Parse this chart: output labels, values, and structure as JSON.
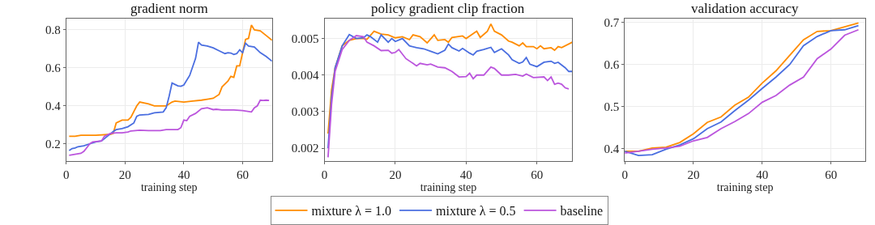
{
  "chart_data": [
    {
      "type": "line",
      "title": "gradient norm",
      "xlabel": "training step",
      "xlim": [
        0,
        70
      ],
      "xticks": [
        0,
        20,
        40,
        60
      ],
      "ylim": [
        0.11,
        0.86
      ],
      "yticks": [
        0.2,
        0.4,
        0.6,
        0.8
      ],
      "grid": true,
      "legend": "bottom",
      "marker": "none",
      "line_style": "solid",
      "series": [
        {
          "name": "mixture λ = 1.0",
          "color": "#ff8c00",
          "x": [
            1,
            3,
            5,
            10,
            15,
            16,
            17,
            19,
            21,
            22,
            24,
            25,
            28,
            30,
            32,
            34,
            36,
            37,
            40,
            43,
            46,
            48,
            50,
            52,
            53,
            55,
            56,
            57,
            58,
            59,
            60,
            61,
            62,
            63,
            64,
            66,
            68,
            70
          ],
          "values": [
            0.24,
            0.24,
            0.245,
            0.245,
            0.25,
            0.255,
            0.31,
            0.325,
            0.325,
            0.34,
            0.4,
            0.42,
            0.41,
            0.4,
            0.4,
            0.4,
            0.42,
            0.425,
            0.42,
            0.425,
            0.43,
            0.435,
            0.44,
            0.46,
            0.5,
            0.53,
            0.555,
            0.55,
            0.61,
            0.61,
            0.68,
            0.75,
            0.755,
            0.825,
            0.8,
            0.795,
            0.77,
            0.745
          ]
        },
        {
          "name": "mixture λ = 0.5",
          "color": "#4a6ee0",
          "x": [
            1,
            2,
            3,
            4,
            6,
            8,
            10,
            12,
            14,
            16,
            17,
            19,
            21,
            23,
            24,
            25,
            28,
            30,
            33,
            34,
            35,
            36,
            38,
            39,
            40,
            42,
            44,
            45,
            46,
            48,
            50,
            52,
            54,
            55,
            56,
            57,
            58,
            59,
            60,
            61,
            62,
            64,
            66,
            68,
            70
          ],
          "values": [
            0.165,
            0.175,
            0.178,
            0.185,
            0.19,
            0.2,
            0.21,
            0.215,
            0.24,
            0.265,
            0.275,
            0.28,
            0.29,
            0.31,
            0.345,
            0.352,
            0.355,
            0.363,
            0.368,
            0.39,
            0.45,
            0.52,
            0.505,
            0.503,
            0.51,
            0.56,
            0.65,
            0.735,
            0.72,
            0.715,
            0.705,
            0.69,
            0.675,
            0.68,
            0.678,
            0.67,
            0.675,
            0.695,
            0.68,
            0.73,
            0.715,
            0.71,
            0.68,
            0.66,
            0.635
          ]
        },
        {
          "name": "baseline",
          "color": "#bb55dd",
          "x": [
            1,
            3,
            5,
            6,
            7,
            8,
            9,
            12,
            13,
            15,
            17,
            19,
            21,
            22,
            25,
            28,
            32,
            34,
            38,
            39,
            40,
            41,
            42,
            44,
            46,
            48,
            50,
            51,
            53,
            57,
            60,
            63,
            64,
            65,
            66,
            67,
            68,
            69
          ],
          "values": [
            0.14,
            0.145,
            0.15,
            0.16,
            0.18,
            0.2,
            0.21,
            0.215,
            0.24,
            0.255,
            0.258,
            0.258,
            0.262,
            0.268,
            0.272,
            0.27,
            0.27,
            0.275,
            0.275,
            0.285,
            0.325,
            0.322,
            0.345,
            0.36,
            0.385,
            0.39,
            0.38,
            0.382,
            0.378,
            0.378,
            0.375,
            0.368,
            0.39,
            0.4,
            0.43,
            0.428,
            0.43,
            0.428
          ]
        }
      ]
    },
    {
      "type": "line",
      "title": "policy gradient clip fraction",
      "xlabel": "training step",
      "xlim": [
        0,
        70
      ],
      "xticks": [
        0,
        20,
        40,
        60
      ],
      "ylim": [
        0.00165,
        0.00555
      ],
      "yticks": [
        0.002,
        0.003,
        0.004,
        0.005
      ],
      "grid": true,
      "marker": "none",
      "line_style": "solid",
      "series": [
        {
          "color": "#ff8c00",
          "x": [
            1,
            2,
            3,
            5,
            7,
            9,
            11,
            12,
            14,
            16,
            18,
            20,
            22,
            24,
            25,
            27,
            29,
            31,
            32,
            34,
            35,
            36,
            39,
            40,
            43,
            44,
            46,
            47,
            48,
            50,
            52,
            53,
            55,
            56,
            57,
            59,
            60,
            61,
            62,
            64,
            65,
            66,
            67,
            70
          ],
          "values": [
            0.0024,
            0.0036,
            0.0042,
            0.0048,
            0.00495,
            0.005,
            0.005,
            0.00498,
            0.0052,
            0.00512,
            0.0051,
            0.00502,
            0.00505,
            0.00497,
            0.0051,
            0.00505,
            0.00488,
            0.0051,
            0.00495,
            0.00497,
            0.0049,
            0.00503,
            0.00507,
            0.005,
            0.0052,
            0.00503,
            0.0052,
            0.0054,
            0.0052,
            0.0051,
            0.00493,
            0.0049,
            0.0048,
            0.00488,
            0.00478,
            0.00478,
            0.00472,
            0.0048,
            0.00472,
            0.00475,
            0.00468,
            0.00478,
            0.00475,
            0.0049
          ]
        },
        {
          "color": "#4a6ee0",
          "x": [
            1,
            2,
            3,
            5,
            7,
            9,
            11,
            12,
            13,
            15,
            16,
            18,
            19,
            20,
            22,
            24,
            26,
            28,
            30,
            32,
            34,
            35,
            36,
            38,
            39,
            41,
            42,
            43,
            45,
            47,
            48,
            50,
            52,
            53,
            55,
            56,
            57,
            58,
            60,
            62,
            64,
            65,
            66,
            68,
            69,
            70
          ],
          "values": [
            0.002,
            0.0034,
            0.0042,
            0.0048,
            0.00511,
            0.005,
            0.00502,
            0.0051,
            0.00505,
            0.0049,
            0.0051,
            0.0049,
            0.005,
            0.00492,
            0.005,
            0.0048,
            0.00475,
            0.00472,
            0.00465,
            0.00458,
            0.00468,
            0.00485,
            0.00475,
            0.00466,
            0.00473,
            0.0046,
            0.00455,
            0.00465,
            0.0047,
            0.00476,
            0.00462,
            0.00472,
            0.00455,
            0.00442,
            0.00432,
            0.00436,
            0.00448,
            0.0043,
            0.00423,
            0.00435,
            0.00438,
            0.00432,
            0.00435,
            0.0042,
            0.0041,
            0.0041
          ]
        },
        {
          "color": "#bb55dd",
          "x": [
            1,
            2,
            3,
            5,
            7,
            9,
            11,
            12,
            14,
            16,
            18,
            19,
            20,
            21,
            23,
            25,
            26,
            27,
            29,
            30,
            32,
            34,
            36,
            38,
            40,
            41,
            42,
            43,
            45,
            47,
            48,
            50,
            52,
            54,
            56,
            57,
            59,
            62,
            63,
            64,
            65,
            66,
            67,
            68,
            69
          ],
          "values": [
            0.00175,
            0.0032,
            0.0041,
            0.0047,
            0.00495,
            0.00508,
            0.00505,
            0.0049,
            0.0048,
            0.00467,
            0.00468,
            0.0046,
            0.00462,
            0.0047,
            0.00445,
            0.00432,
            0.00425,
            0.00432,
            0.00428,
            0.0043,
            0.00422,
            0.0042,
            0.0041,
            0.00395,
            0.00396,
            0.00405,
            0.0039,
            0.004,
            0.004,
            0.00422,
            0.00418,
            0.004,
            0.004,
            0.00402,
            0.00397,
            0.00403,
            0.00393,
            0.00395,
            0.00385,
            0.00395,
            0.00375,
            0.00378,
            0.00375,
            0.00365,
            0.00362
          ]
        }
      ]
    },
    {
      "type": "line",
      "title": "validation accuracy",
      "xlabel": "training step",
      "xlim": [
        0,
        70
      ],
      "xticks": [
        0,
        20,
        40,
        60
      ],
      "ylim": [
        0.37,
        0.71
      ],
      "yticks": [
        0.4,
        0.5,
        0.6,
        0.7
      ],
      "grid": true,
      "marker": "none",
      "line_style": "solid",
      "series": [
        {
          "color": "#ff8c00",
          "x": [
            0,
            4,
            8,
            12,
            16,
            20,
            24,
            28,
            32,
            36,
            40,
            44,
            48,
            52,
            56,
            60,
            64,
            68
          ],
          "values": [
            0.393,
            0.393,
            0.401,
            0.403,
            0.414,
            0.435,
            0.462,
            0.475,
            0.503,
            0.522,
            0.556,
            0.585,
            0.622,
            0.659,
            0.679,
            0.681,
            0.69,
            0.699
          ]
        },
        {
          "color": "#4a6ee0",
          "x": [
            0,
            4,
            8,
            12,
            16,
            20,
            24,
            28,
            32,
            36,
            40,
            44,
            48,
            52,
            56,
            60,
            64,
            68
          ],
          "values": [
            0.393,
            0.383,
            0.385,
            0.398,
            0.408,
            0.423,
            0.447,
            0.463,
            0.49,
            0.515,
            0.543,
            0.57,
            0.6,
            0.645,
            0.667,
            0.681,
            0.683,
            0.693
          ]
        },
        {
          "color": "#bb55dd",
          "x": [
            0,
            4,
            8,
            12,
            16,
            20,
            24,
            28,
            32,
            36,
            40,
            44,
            48,
            52,
            56,
            60,
            64,
            68
          ],
          "values": [
            0.389,
            0.393,
            0.398,
            0.401,
            0.405,
            0.418,
            0.426,
            0.447,
            0.464,
            0.483,
            0.51,
            0.526,
            0.551,
            0.57,
            0.614,
            0.637,
            0.67,
            0.683
          ]
        }
      ]
    }
  ]
}
